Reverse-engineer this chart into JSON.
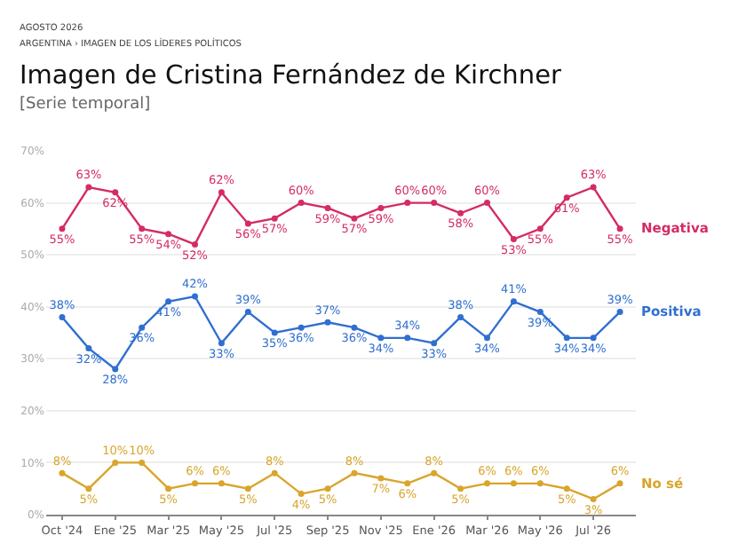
{
  "chart_data": {
    "type": "line",
    "title": "Imagen de Cristina Fernández de Kirchner",
    "subtitle": "[Serie temporal]",
    "annotations": [
      "AGOSTO 2026",
      "ARGENTINA › IMAGEN DE LOS LÍDERES POLÍTICOS"
    ],
    "categories": [
      "Oct '24",
      null,
      "Ene '25",
      null,
      "Mar '25",
      null,
      "May '25",
      null,
      "Jul '25",
      null,
      "Sep '25",
      null,
      "Nov '25",
      null,
      "Ene '26",
      null,
      "Mar '26",
      null,
      "May '26",
      null,
      "Jul '26",
      null
    ],
    "series": [
      {
        "name": "Negativa",
        "color": "#d42c62",
        "values": [
          55,
          63,
          62,
          55,
          54,
          52,
          62,
          56,
          57,
          60,
          59,
          57,
          59,
          60,
          60,
          58,
          60,
          53,
          55,
          61,
          63,
          55
        ],
        "value_labels": [
          "55%",
          "63%",
          "62%",
          "55%",
          "54%",
          "52%",
          "62%",
          "56%",
          "57%",
          "60%",
          "59%",
          "57%",
          "59%",
          "60%",
          "60%",
          "58%",
          "60%",
          "53%",
          "55%",
          "61%",
          "63%",
          "55%"
        ]
      },
      {
        "name": "Positiva",
        "color": "#2f6fd1",
        "values": [
          38,
          32,
          28,
          36,
          41,
          42,
          33,
          39,
          35,
          36,
          37,
          36,
          34,
          34,
          33,
          38,
          34,
          41,
          39,
          34,
          34,
          39
        ],
        "value_labels": [
          "38%",
          "32%",
          "28%",
          "36%",
          "41%",
          "42%",
          "33%",
          "39%",
          "35%",
          "36%",
          "37%",
          "36%",
          "34%",
          "34%",
          "33%",
          "38%",
          "34%",
          "41%",
          "39%",
          "34%",
          "34%",
          "39%"
        ]
      },
      {
        "name": "No sé",
        "color": "#d9a52b",
        "values": [
          8,
          5,
          10,
          10,
          5,
          6,
          6,
          5,
          8,
          4,
          5,
          8,
          7,
          6,
          8,
          5,
          6,
          6,
          6,
          5,
          3,
          6
        ],
        "value_labels": [
          "8%",
          "5%",
          "10%",
          "10%",
          "5%",
          "6%",
          "6%",
          "5%",
          "8%",
          "4%",
          "5%",
          "8%",
          "7%",
          "6%",
          "8%",
          "5%",
          "6%",
          "6%",
          "6%",
          "5%",
          "3%",
          "6%"
        ]
      }
    ],
    "ylim": [
      0,
      70
    ],
    "yticks": [
      {
        "value": 0,
        "label": "0%"
      },
      {
        "value": 10,
        "label": "10%"
      },
      {
        "value": 20,
        "label": "20%"
      },
      {
        "value": 30,
        "label": "30%"
      },
      {
        "value": 40,
        "label": "40%"
      },
      {
        "value": 50,
        "label": "50%"
      },
      {
        "value": 60,
        "label": "60%"
      },
      {
        "value": 70,
        "label": "70%"
      }
    ],
    "grid": "y",
    "legend": false,
    "marker": "circle",
    "line_style": "solid"
  }
}
